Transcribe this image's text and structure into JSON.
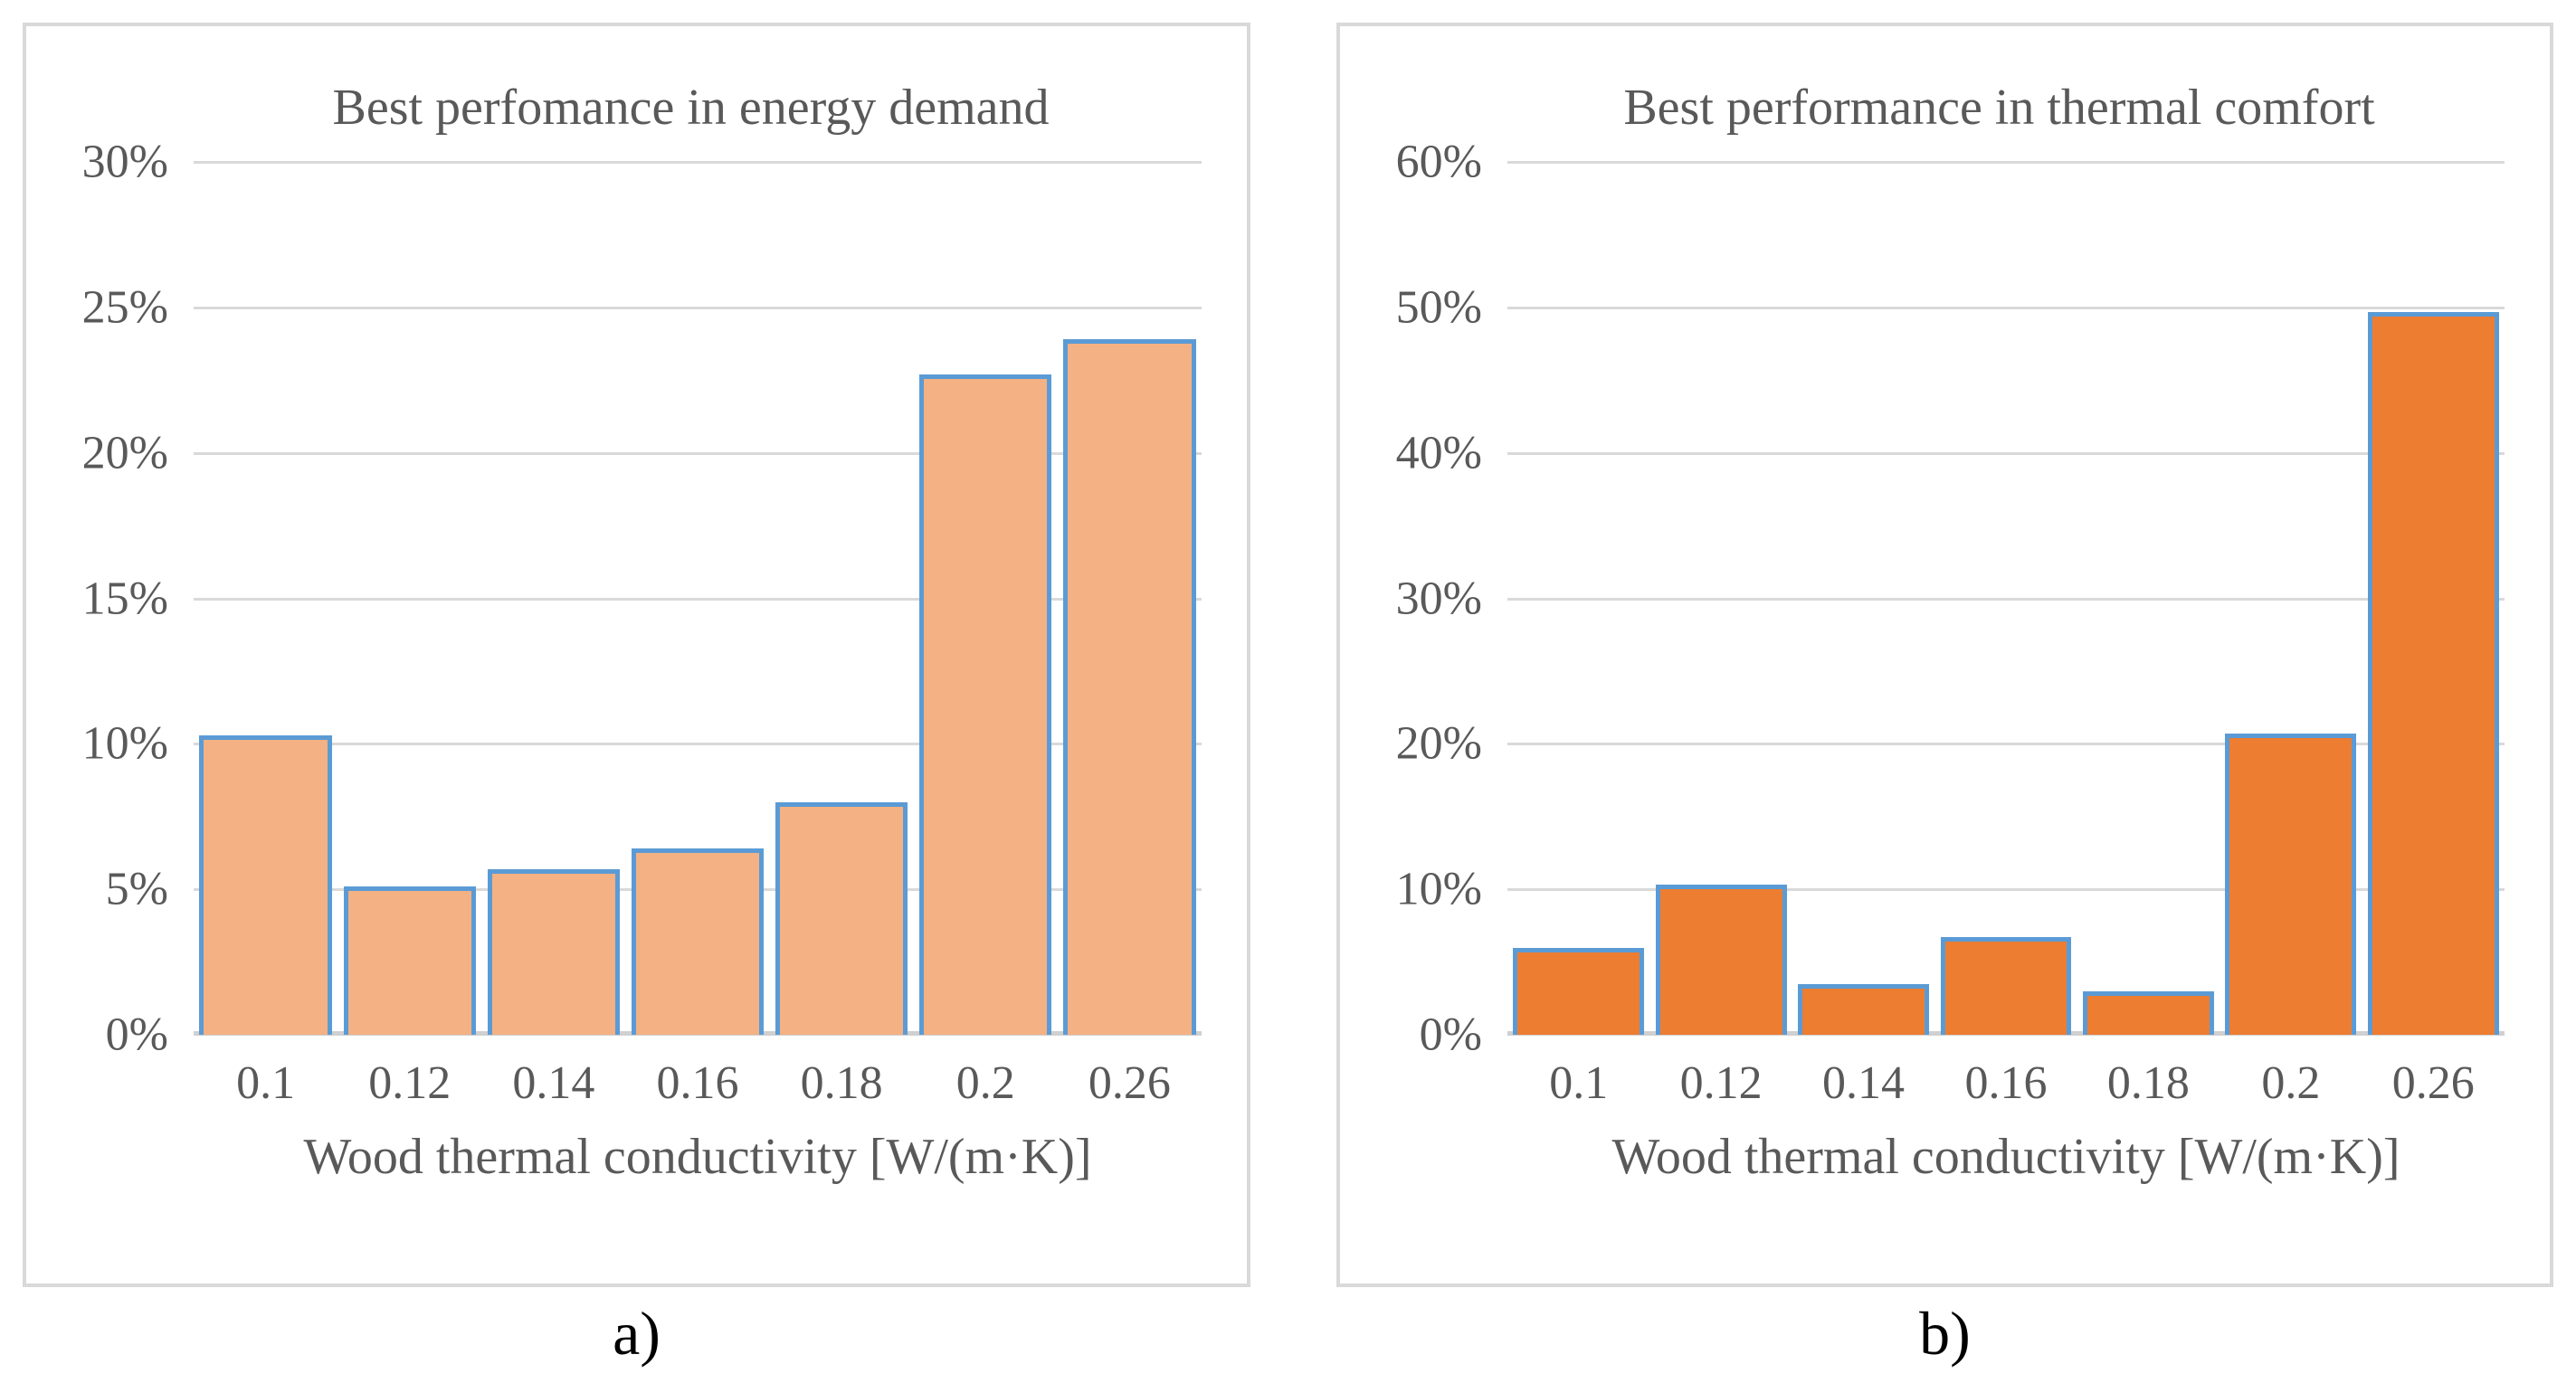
{
  "figure": {
    "description": "Two side-by-side bar chart panels comparing wood thermal conductivity performance",
    "panel_border_color": "#d9d9d9",
    "gridline_color": "#d9d9d9",
    "text_color": "#595959",
    "caption_color": "#000000"
  },
  "chart_data": [
    {
      "type": "bar",
      "panel_label": "a)",
      "title": "Best perfomance in energy demand",
      "xlabel": "Wood thermal conductivity [W/(m·K)]",
      "categories": [
        0.1,
        0.12,
        0.14,
        0.16,
        0.18,
        0.2,
        0.26
      ],
      "xtick_labels": [
        "0.1",
        "0.12",
        "0.14",
        "0.16",
        "0.18",
        "0.2",
        "0.26"
      ],
      "values": [
        10.3,
        5.1,
        5.7,
        6.4,
        8.0,
        22.7,
        23.9
      ],
      "unit": "%",
      "ylim": [
        0,
        30
      ],
      "ytick_step": 5,
      "ytick_labels": [
        "30%",
        "25%",
        "20%",
        "15%",
        "10%",
        "5%",
        "0%"
      ],
      "grid": true,
      "legend": "none",
      "bar_fill": "#f4b183",
      "bar_border": "#5b9bd5"
    },
    {
      "type": "bar",
      "panel_label": "b)",
      "title": "Best performance in thermal comfort",
      "xlabel": "Wood thermal conductivity [W/(m·K)]",
      "categories": [
        0.1,
        0.12,
        0.14,
        0.16,
        0.18,
        0.2,
        0.26
      ],
      "xtick_labels": [
        "0.1",
        "0.12",
        "0.14",
        "0.16",
        "0.18",
        "0.2",
        "0.26"
      ],
      "values": [
        6.0,
        10.3,
        3.5,
        6.7,
        3.0,
        20.7,
        49.7
      ],
      "unit": "%",
      "ylim": [
        0,
        60
      ],
      "ytick_step": 10,
      "ytick_labels": [
        "60%",
        "50%",
        "40%",
        "30%",
        "20%",
        "10%",
        "0%"
      ],
      "grid": true,
      "legend": "none",
      "bar_fill": "#ed7d31",
      "bar_border": "#5b9bd5"
    }
  ]
}
